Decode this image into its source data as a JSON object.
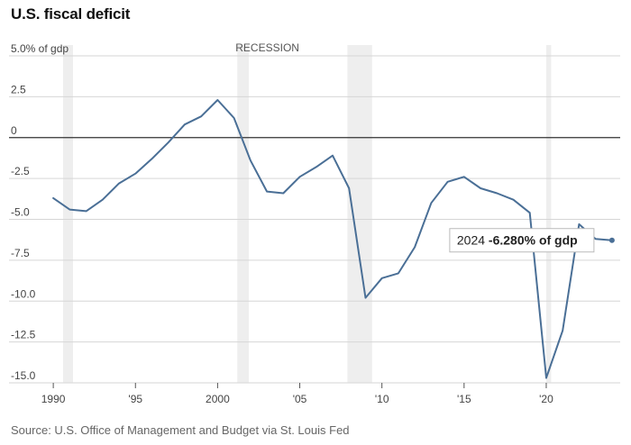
{
  "title": "U.S. fiscal deficit",
  "source": "Source: U.S. Office of Management and Budget via St. Louis Fed",
  "chart_data": {
    "type": "line",
    "y_unit_label": "5.0% of gdp",
    "y_ticks": [
      {
        "value": 5,
        "label": "5.0% of gdp"
      },
      {
        "value": 2.5,
        "label": "2.5"
      },
      {
        "value": 0,
        "label": "0"
      },
      {
        "value": -2.5,
        "label": "-2.5"
      },
      {
        "value": -5,
        "label": "-5.0"
      },
      {
        "value": -7.5,
        "label": "-7.5"
      },
      {
        "value": -10,
        "label": "-10.0"
      },
      {
        "value": -12.5,
        "label": "-12.5"
      },
      {
        "value": -15,
        "label": "-15.0"
      }
    ],
    "x_ticks": [
      {
        "value": 1990,
        "label": "1990"
      },
      {
        "value": 1995,
        "label": "'95"
      },
      {
        "value": 2000,
        "label": "2000"
      },
      {
        "value": 2005,
        "label": "'05"
      },
      {
        "value": 2010,
        "label": "'10"
      },
      {
        "value": 2015,
        "label": "'15"
      },
      {
        "value": 2020,
        "label": "'20"
      }
    ],
    "xlim": [
      1989.5,
      2024.5
    ],
    "ylim": [
      -15,
      5
    ],
    "grid": true,
    "recession_label": "RECESSION",
    "recessions": [
      [
        1990.6,
        1991.2
      ],
      [
        2001.2,
        2001.9
      ],
      [
        2007.9,
        2009.4
      ],
      [
        2020.0,
        2020.3
      ]
    ],
    "series": [
      {
        "color": "#4a6f96",
        "x": [
          1990,
          1991,
          1992,
          1993,
          1994,
          1995,
          1996,
          1997,
          1998,
          1999,
          2000,
          2001,
          2002,
          2003,
          2004,
          2005,
          2006,
          2007,
          2008,
          2009,
          2010,
          2011,
          2012,
          2013,
          2014,
          2015,
          2016,
          2017,
          2018,
          2019,
          2020,
          2021,
          2022,
          2023,
          2024
        ],
        "y": [
          -3.7,
          -4.4,
          -4.5,
          -3.8,
          -2.8,
          -2.2,
          -1.3,
          -0.3,
          0.8,
          1.3,
          2.3,
          1.2,
          -1.4,
          -3.3,
          -3.4,
          -2.4,
          -1.8,
          -1.1,
          -3.1,
          -9.8,
          -8.6,
          -8.3,
          -6.7,
          -4.0,
          -2.7,
          -2.4,
          -3.1,
          -3.4,
          -3.8,
          -4.6,
          -14.7,
          -11.8,
          -5.3,
          -6.2,
          -6.28
        ]
      }
    ],
    "annotation": {
      "x": 2024,
      "y": -6.28,
      "year": "2024",
      "value": "-6.280% of gdp"
    }
  }
}
